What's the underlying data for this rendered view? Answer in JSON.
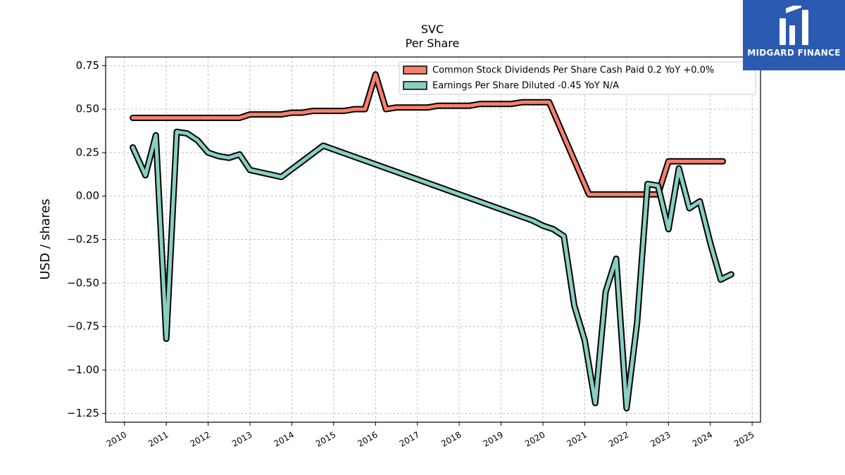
{
  "brand": {
    "name": "MIDGARD FINANCE",
    "bg_color": "#2a5bb0"
  },
  "chart_data": {
    "type": "line",
    "title": "SVC",
    "subtitle": "Per  Share",
    "xlabel": "",
    "ylabel": "USD / shares",
    "xlim": [
      2009.55,
      2025.2
    ],
    "ylim": [
      -1.3,
      0.8
    ],
    "x_ticks": [
      2010,
      2011,
      2012,
      2013,
      2014,
      2015,
      2016,
      2017,
      2018,
      2019,
      2020,
      2021,
      2022,
      2023,
      2024,
      2025
    ],
    "y_ticks": [
      0.75,
      0.5,
      0.25,
      0.0,
      -0.25,
      -0.5,
      -0.75,
      -1.0,
      -1.25
    ],
    "y_tick_labels": [
      "0.75",
      "0.50",
      "0.25",
      "0.00",
      "−0.25",
      "−0.50",
      "−0.75",
      "−1.00",
      "−1.25"
    ],
    "grid": true,
    "legend_position": "top-right",
    "series": [
      {
        "name": "Common Stock Dividends Per Share Cash Paid  0.2 YoY +0.0%",
        "color": "#f77f6e",
        "x": [
          2010.2,
          2012.0,
          2012.75,
          2013.0,
          2013.75,
          2014.0,
          2014.25,
          2014.5,
          2015.0,
          2015.25,
          2015.5,
          2015.75,
          2016.0,
          2016.1,
          2016.25,
          2016.5,
          2017.0,
          2017.25,
          2017.5,
          2018.0,
          2018.25,
          2018.5,
          2019.0,
          2019.25,
          2019.5,
          2020.0,
          2020.15,
          2021.1,
          2022.75,
          2023.0,
          2024.3
        ],
        "y": [
          0.45,
          0.45,
          0.45,
          0.47,
          0.47,
          0.48,
          0.48,
          0.49,
          0.49,
          0.49,
          0.5,
          0.5,
          0.7,
          0.62,
          0.5,
          0.51,
          0.51,
          0.51,
          0.52,
          0.52,
          0.52,
          0.53,
          0.53,
          0.53,
          0.54,
          0.54,
          0.54,
          0.01,
          0.01,
          0.2,
          0.2
        ]
      },
      {
        "name": "Earnings Per Share Diluted  -0.45 YoY N/A",
        "color": "#88cfc2",
        "x": [
          2010.2,
          2010.5,
          2010.75,
          2011.0,
          2011.25,
          2011.5,
          2011.75,
          2012.0,
          2012.25,
          2012.5,
          2012.75,
          2013.0,
          2013.75,
          2014.75,
          2019.75,
          2020.0,
          2020.25,
          2020.5,
          2020.75,
          2021.0,
          2021.25,
          2021.5,
          2021.75,
          2022.0,
          2022.25,
          2022.5,
          2022.75,
          2023.0,
          2023.25,
          2023.5,
          2023.75,
          2024.0,
          2024.25,
          2024.5
        ],
        "y": [
          0.28,
          0.12,
          0.35,
          -0.82,
          0.37,
          0.36,
          0.32,
          0.25,
          0.23,
          0.22,
          0.24,
          0.15,
          0.11,
          0.29,
          -0.14,
          -0.17,
          -0.19,
          -0.23,
          -0.63,
          -0.83,
          -1.19,
          -0.55,
          -0.36,
          -1.22,
          -0.73,
          0.07,
          0.06,
          -0.19,
          0.16,
          -0.07,
          -0.03,
          -0.27,
          -0.48,
          -0.45
        ]
      }
    ]
  }
}
